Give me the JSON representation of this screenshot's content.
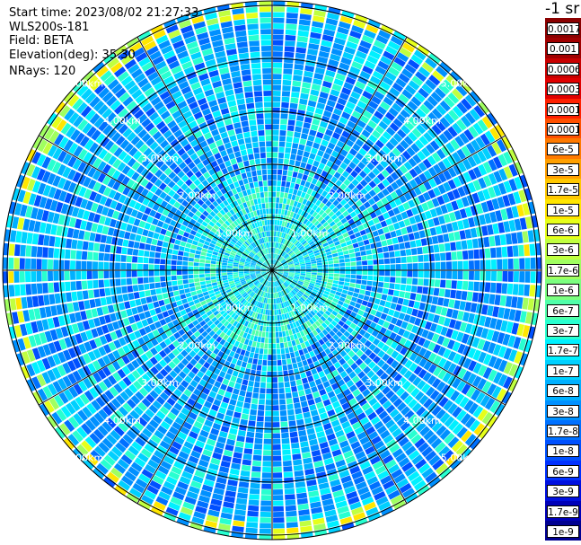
{
  "header": {
    "start_time": "Start time: 2023/08/02 21:27:33",
    "instrument": "WLS200s-181",
    "field": "Field: BETA",
    "elevation": "Elevation(deg): 35.30",
    "nrays": "NRays: 120"
  },
  "colorbar": {
    "unit": "-1 sr",
    "labels": [
      "0.0017",
      "0.001",
      "0.0006",
      "0.0003",
      "0.00017",
      "0.0001",
      "6e-5",
      "3e-5",
      "1.7e-5",
      "1e-5",
      "6e-6",
      "3e-6",
      "1.7e-6",
      "1e-6",
      "6e-7",
      "3e-7",
      "1.7e-7",
      "1e-7",
      "6e-8",
      "3e-8",
      "1.7e-8",
      "1e-8",
      "6e-9",
      "3e-9",
      "1.7e-9",
      "1e-9"
    ],
    "colors": [
      "#8a0000",
      "#a00000",
      "#c80000",
      "#e00000",
      "#ff2000",
      "#ff5000",
      "#ff7a00",
      "#ffa000",
      "#ffc800",
      "#ffe600",
      "#e6ff1a",
      "#c0ff40",
      "#a0ff60",
      "#7cff80",
      "#50ffaa",
      "#28ffd0",
      "#00f0ff",
      "#00d0ff",
      "#00b0ff",
      "#0090ff",
      "#0070ff",
      "#0050ff",
      "#0030ff",
      "#0010e0",
      "#0000b8",
      "#000090"
    ]
  },
  "plot": {
    "range_labels": [
      "1.00km",
      "2.00km",
      "3.00km",
      "4.00km",
      "5.00km"
    ],
    "range_ring_count": 5,
    "radial_line_count": 12,
    "nrays": 120
  }
}
